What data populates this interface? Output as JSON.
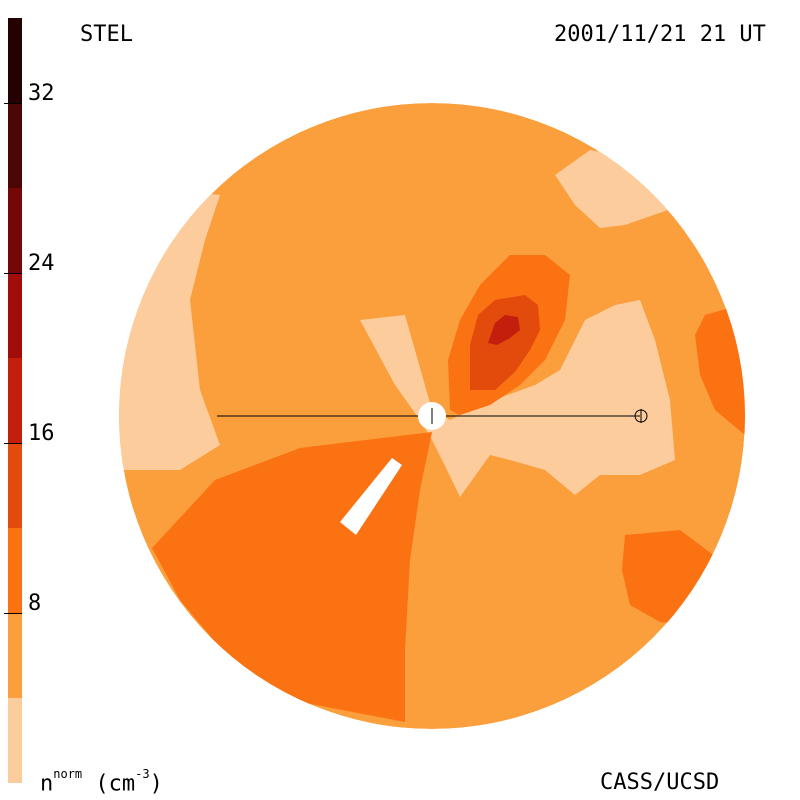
{
  "header": {
    "station": "STEL",
    "timestamp": "2001/11/21 21 UT"
  },
  "footer": {
    "units_base": "n",
    "units_sup": "norm",
    "units_rest": " (cm",
    "units_exp": "-3",
    "units_close": ")",
    "credit": "CASS/UCSD"
  },
  "colorbar": {
    "min": 0,
    "max": 36,
    "ticks": [
      "8",
      "16",
      "24",
      "32"
    ],
    "levels": [
      {
        "from": 0,
        "to": 4,
        "color": "#fdcc9c"
      },
      {
        "from": 4,
        "to": 8,
        "color": "#fb9e3c"
      },
      {
        "from": 8,
        "to": 12,
        "color": "#fb7213"
      },
      {
        "from": 12,
        "to": 16,
        "color": "#e34b0d"
      },
      {
        "from": 16,
        "to": 20,
        "color": "#c41e0c"
      },
      {
        "from": 20,
        "to": 24,
        "color": "#a20d0b"
      },
      {
        "from": 24,
        "to": 28,
        "color": "#760707"
      },
      {
        "from": 28,
        "to": 32,
        "color": "#4b0606"
      },
      {
        "from": 32,
        "to": 36,
        "color": "#240202"
      }
    ]
  },
  "map": {
    "background_color": "#fb9e3c",
    "symbols": [
      "sun-marker",
      "earth-marker"
    ]
  }
}
